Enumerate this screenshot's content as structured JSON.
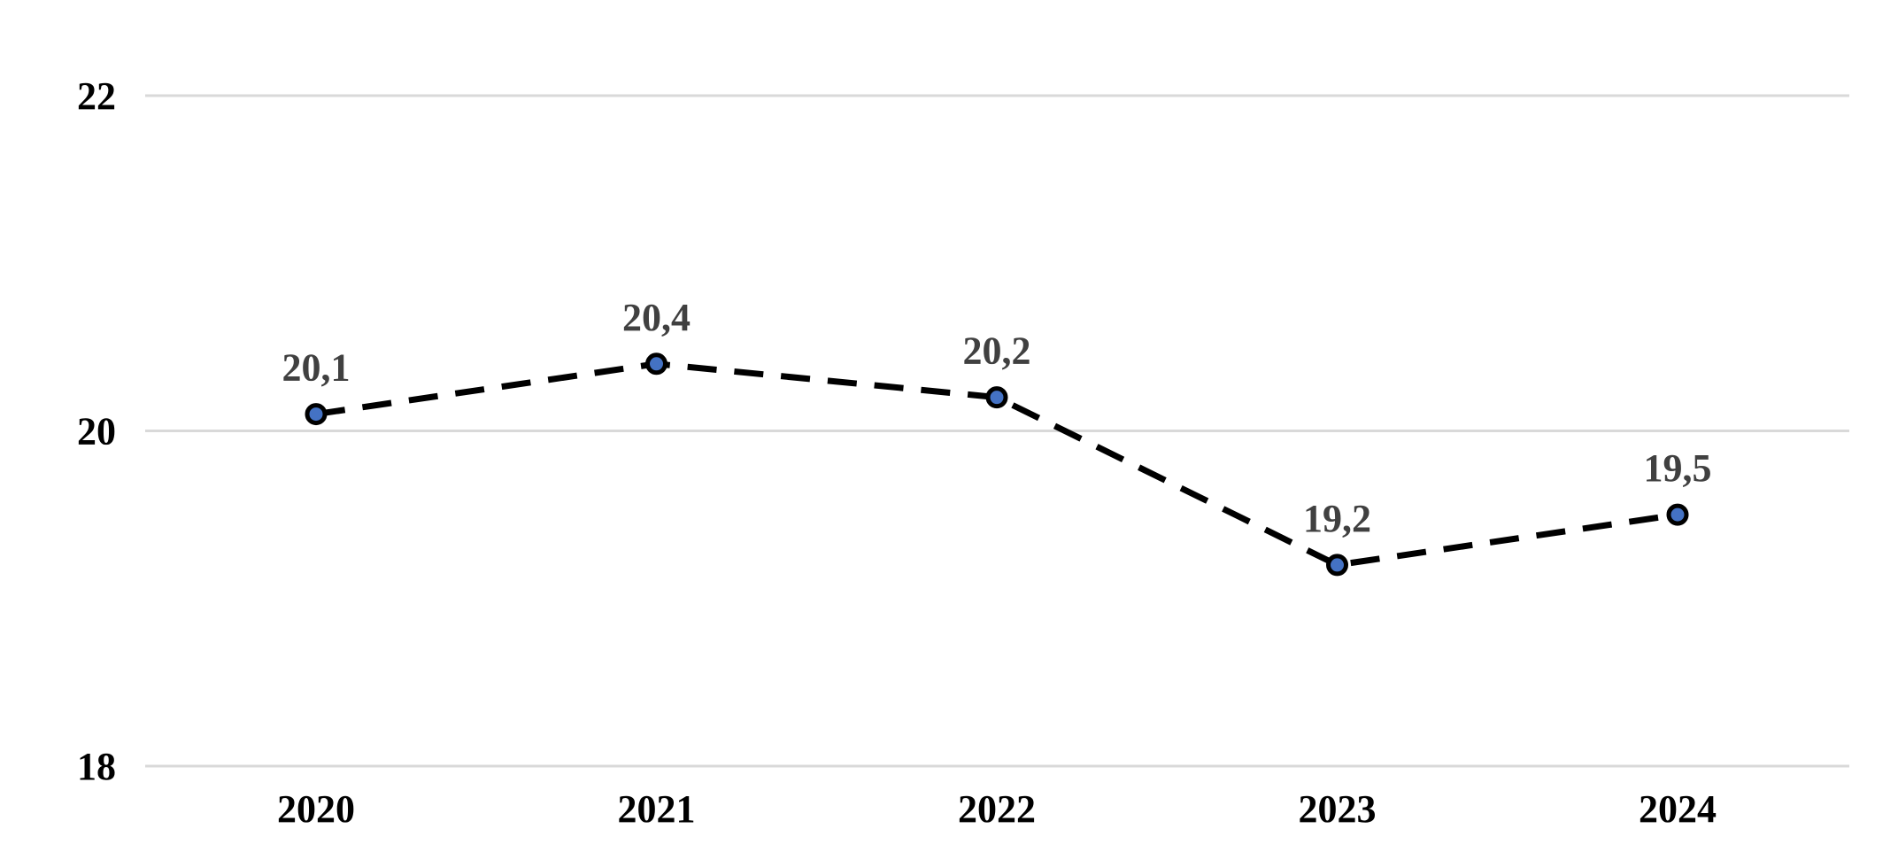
{
  "chart": {
    "background_color": "#ffffff",
    "line_color": "#000000",
    "marker_fill_color": "#4472C4",
    "marker_stroke_color": "#000000",
    "gridline_color": "#D9D9D9",
    "data_label_color": "#404040",
    "axis_label_color": "#000000"
  },
  "chart_data": {
    "type": "line",
    "categories": [
      "2020",
      "2021",
      "2022",
      "2023",
      "2024"
    ],
    "series": [
      {
        "name": "value",
        "values": [
          20.1,
          20.4,
          20.2,
          19.2,
          19.5
        ],
        "point_labels": [
          "20,1",
          "20,4",
          "20,2",
          "19,2",
          "19,5"
        ],
        "line_style": "dashed",
        "marker": "circle"
      }
    ],
    "title": "",
    "xlabel": "",
    "ylabel": "",
    "ylim": [
      18,
      22
    ],
    "yticks": [
      22,
      20,
      18
    ],
    "ytick_labels": [
      "22",
      "20",
      "18"
    ],
    "grid": "horizontal-only",
    "legend": "none",
    "decimal_separator": ","
  }
}
